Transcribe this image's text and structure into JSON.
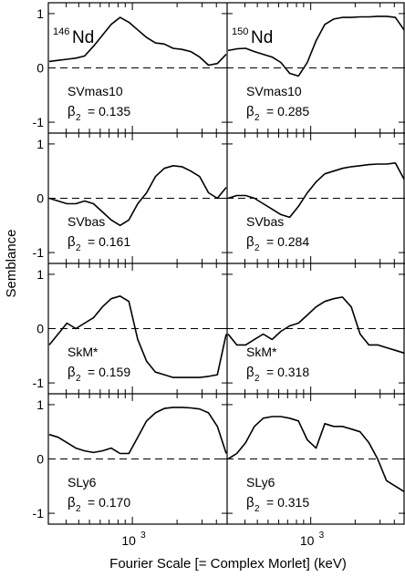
{
  "y_axis_label": "Semblance",
  "x_axis_label": "Fourier Scale [= Complex Morlet] (keV)",
  "column_titles": [
    {
      "sup": "146",
      "main": "Nd"
    },
    {
      "sup": "150",
      "main": "Nd"
    }
  ],
  "y_tick_labels": [
    "1",
    "0",
    "-1"
  ],
  "x_tick_label": {
    "base": "10",
    "exp": "3"
  },
  "chart_data": {
    "type": "line",
    "xlabel": "Fourier Scale [= Complex Morlet] (keV)",
    "ylabel": "Semblance",
    "xscale": "log",
    "ylim": [
      -1.2,
      1.2
    ],
    "yticks": [
      -1,
      0,
      1
    ],
    "x_labeled_tick": 1000,
    "reference_line": {
      "y": 0,
      "style": "dashed"
    },
    "grid": false,
    "curve_sampling": "values sampled at 21 evenly spaced positions across each panel's log-scale x range",
    "panels": [
      {
        "row": 0,
        "col": 0,
        "nucleus": "146Nd",
        "label": "SVmas10",
        "beta_sym": "β",
        "beta_sub": "2",
        "beta_val": "= 0.135",
        "values": [
          0.12,
          0.14,
          0.16,
          0.18,
          0.22,
          0.4,
          0.6,
          0.8,
          0.93,
          0.84,
          0.7,
          0.56,
          0.46,
          0.44,
          0.36,
          0.34,
          0.3,
          0.2,
          0.05,
          0.08,
          0.25
        ]
      },
      {
        "row": 0,
        "col": 1,
        "nucleus": "150Nd",
        "label": "SVmas10",
        "beta_sym": "β",
        "beta_sub": "2",
        "beta_val": "= 0.285",
        "values": [
          0.32,
          0.35,
          0.36,
          0.3,
          0.25,
          0.2,
          0.1,
          -0.1,
          -0.15,
          0.1,
          0.5,
          0.8,
          0.9,
          0.93,
          0.93,
          0.94,
          0.94,
          0.95,
          0.95,
          0.93,
          0.7
        ]
      },
      {
        "row": 1,
        "col": 0,
        "nucleus": "146Nd",
        "label": "SVbas",
        "beta_sym": "β",
        "beta_sub": "2",
        "beta_val": "= 0.161",
        "values": [
          0.0,
          -0.05,
          -0.1,
          -0.1,
          -0.05,
          -0.1,
          -0.25,
          -0.4,
          -0.5,
          -0.4,
          -0.1,
          0.1,
          0.4,
          0.55,
          0.6,
          0.58,
          0.5,
          0.4,
          0.1,
          0.0,
          0.2
        ]
      },
      {
        "row": 1,
        "col": 1,
        "nucleus": "150Nd",
        "label": "SVbas",
        "beta_sym": "β",
        "beta_sub": "2",
        "beta_val": "= 0.284",
        "values": [
          0.0,
          0.05,
          0.05,
          0.0,
          -0.1,
          -0.2,
          -0.3,
          -0.35,
          -0.15,
          0.1,
          0.3,
          0.45,
          0.5,
          0.55,
          0.58,
          0.6,
          0.62,
          0.63,
          0.63,
          0.65,
          0.35
        ]
      },
      {
        "row": 2,
        "col": 0,
        "nucleus": "146Nd",
        "label": "SkM*",
        "beta_sym": "β",
        "beta_sub": "2",
        "beta_val": "= 0.159",
        "values": [
          -0.3,
          -0.1,
          0.1,
          0.0,
          0.1,
          0.2,
          0.4,
          0.55,
          0.6,
          0.5,
          -0.2,
          -0.6,
          -0.8,
          -0.85,
          -0.9,
          -0.9,
          -0.9,
          -0.9,
          -0.88,
          -0.85,
          -0.1
        ]
      },
      {
        "row": 2,
        "col": 1,
        "nucleus": "150Nd",
        "label": "SkM*",
        "beta_sym": "β",
        "beta_sub": "2",
        "beta_val": "= 0.318",
        "values": [
          -0.1,
          -0.3,
          -0.3,
          -0.2,
          -0.1,
          -0.2,
          -0.05,
          0.05,
          0.1,
          0.25,
          0.4,
          0.5,
          0.55,
          0.58,
          0.4,
          -0.1,
          -0.3,
          -0.3,
          -0.35,
          -0.4,
          -0.45
        ]
      },
      {
        "row": 3,
        "col": 0,
        "nucleus": "146Nd",
        "label": "SLy6",
        "beta_sym": "β",
        "beta_sub": "2",
        "beta_val": "= 0.170",
        "values": [
          0.45,
          0.4,
          0.3,
          0.2,
          0.15,
          0.12,
          0.15,
          0.2,
          0.1,
          0.1,
          0.4,
          0.7,
          0.85,
          0.93,
          0.95,
          0.95,
          0.94,
          0.92,
          0.85,
          0.6,
          0.1
        ]
      },
      {
        "row": 3,
        "col": 1,
        "nucleus": "150Nd",
        "label": "SLy6",
        "beta_sym": "β",
        "beta_sub": "2",
        "beta_val": "= 0.315",
        "values": [
          0.0,
          0.1,
          0.3,
          0.6,
          0.75,
          0.78,
          0.78,
          0.75,
          0.7,
          0.35,
          0.2,
          0.65,
          0.6,
          0.6,
          0.55,
          0.5,
          0.3,
          0.0,
          -0.4,
          -0.5,
          -0.6
        ]
      }
    ]
  }
}
